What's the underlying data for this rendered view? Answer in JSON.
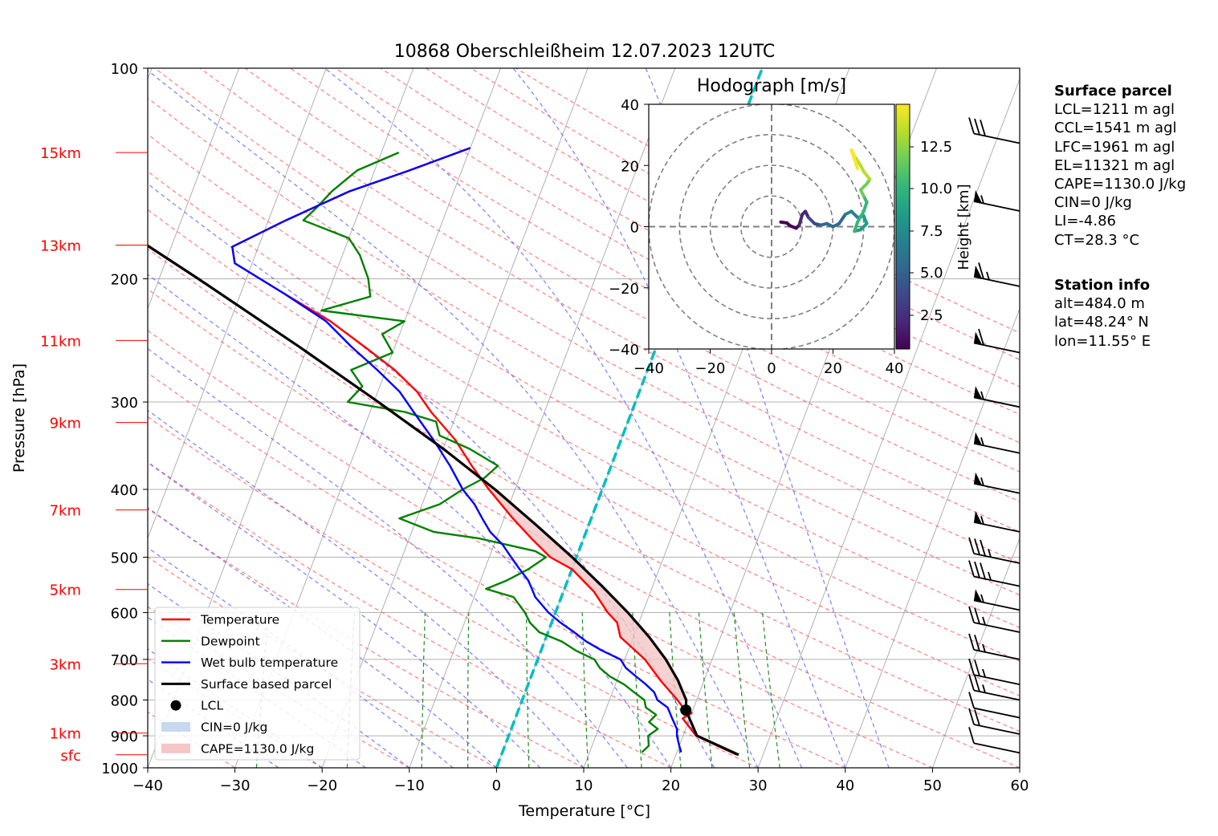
{
  "title": "10868 Oberschleißheim 12.07.2023 12UTC",
  "chart_data": {
    "type": "line",
    "subtype": "skew-t log-p sounding",
    "title": "10868 Oberschleißheim 12.07.2023 12UTC",
    "xlabel": "Temperature [°C]",
    "ylabel": "Pressure [hPa]",
    "xlim": [
      -40,
      60
    ],
    "ylim": [
      1000,
      100
    ],
    "y_scale": "log",
    "x_ticks": [
      "−40",
      "−30",
      "−20",
      "−10",
      "0",
      "10",
      "20",
      "30",
      "40",
      "50",
      "60"
    ],
    "y_ticks": [
      "100",
      "200",
      "300",
      "400",
      "500",
      "600",
      "700",
      "800",
      "900",
      "1000"
    ],
    "height_labels": [
      {
        "label": "sfc",
        "p": 958
      },
      {
        "label": "1km",
        "p": 892
      },
      {
        "label": "3km",
        "p": 710
      },
      {
        "label": "5km",
        "p": 556
      },
      {
        "label": "7km",
        "p": 428
      },
      {
        "label": "9km",
        "p": 321
      },
      {
        "label": "11km",
        "p": 245
      },
      {
        "label": "13km",
        "p": 179
      },
      {
        "label": "15km",
        "p": 132
      }
    ],
    "height_label_color": "#ff0000",
    "grid": true,
    "legend_position": "lower-left",
    "legend": [
      "Temperature",
      "Dewpoint",
      "Wet bulb temperature",
      "Surface based parcel",
      "LCL",
      "CIN=0 J/kg",
      "CAPE=1130.0 J/kg"
    ],
    "series": [
      {
        "name": "Temperature",
        "color": "#ff0000",
        "points": [
          [
            958,
            27.0
          ],
          [
            900,
            21.5
          ],
          [
            850,
            19.2
          ],
          [
            835,
            20.0
          ],
          [
            825,
            19.0
          ],
          [
            800,
            17.8
          ],
          [
            750,
            15.0
          ],
          [
            700,
            12.3
          ],
          [
            650,
            8.5
          ],
          [
            620,
            7.5
          ],
          [
            600,
            6.0
          ],
          [
            560,
            3.5
          ],
          [
            520,
            0.0
          ],
          [
            500,
            -3.0
          ],
          [
            470,
            -6.0
          ],
          [
            440,
            -9.0
          ],
          [
            400,
            -13.0
          ],
          [
            370,
            -16.0
          ],
          [
            340,
            -19.0
          ],
          [
            310,
            -23.0
          ],
          [
            290,
            -25.5
          ],
          [
            270,
            -29.0
          ],
          [
            250,
            -33.5
          ],
          [
            230,
            -38.5
          ],
          [
            210,
            -45.0
          ],
          [
            190,
            -52.0
          ],
          [
            180,
            -53.0
          ],
          [
            165,
            -48.0
          ],
          [
            150,
            -42.0
          ],
          [
            140,
            -36.0
          ],
          [
            130,
            -30.0
          ]
        ]
      },
      {
        "name": "Dewpoint",
        "color": "#008000",
        "points": [
          [
            950,
            16.0
          ],
          [
            930,
            16.5
          ],
          [
            900,
            16.0
          ],
          [
            880,
            16.8
          ],
          [
            860,
            15.5
          ],
          [
            840,
            16.0
          ],
          [
            820,
            14.5
          ],
          [
            800,
            14.0
          ],
          [
            780,
            12.5
          ],
          [
            760,
            11.0
          ],
          [
            740,
            9.0
          ],
          [
            720,
            7.5
          ],
          [
            700,
            6.5
          ],
          [
            680,
            4.0
          ],
          [
            660,
            2.0
          ],
          [
            640,
            -1.0
          ],
          [
            620,
            -2.5
          ],
          [
            600,
            -3.5
          ],
          [
            570,
            -5.5
          ],
          [
            555,
            -9.0
          ],
          [
            540,
            -7.0
          ],
          [
            520,
            -5.0
          ],
          [
            500,
            -3.5
          ],
          [
            490,
            -5.0
          ],
          [
            470,
            -12.0
          ],
          [
            460,
            -17.5
          ],
          [
            440,
            -22.0
          ],
          [
            420,
            -18.0
          ],
          [
            400,
            -16.0
          ],
          [
            385,
            -14.0
          ],
          [
            370,
            -13.0
          ],
          [
            350,
            -17.0
          ],
          [
            335,
            -21.0
          ],
          [
            320,
            -22.0
          ],
          [
            310,
            -26.0
          ],
          [
            300,
            -33.0
          ],
          [
            285,
            -32.0
          ],
          [
            270,
            -34.0
          ],
          [
            255,
            -30.0
          ],
          [
            240,
            -32.0
          ],
          [
            230,
            -30.0
          ],
          [
            222,
            -40.0
          ],
          [
            212,
            -35.0
          ],
          [
            200,
            -36.0
          ],
          [
            185,
            -38.0
          ],
          [
            175,
            -40.0
          ],
          [
            165,
            -46.0
          ],
          [
            158,
            -45.0
          ],
          [
            150,
            -44.0
          ],
          [
            140,
            -42.0
          ],
          [
            132,
            -38.0
          ]
        ]
      },
      {
        "name": "Wet bulb temperature",
        "color": "#0000ff",
        "points": [
          [
            950,
            20.5
          ],
          [
            930,
            20.0
          ],
          [
            900,
            19.3
          ],
          [
            880,
            19.0
          ],
          [
            850,
            18.0
          ],
          [
            820,
            17.0
          ],
          [
            800,
            15.5
          ],
          [
            780,
            14.8
          ],
          [
            760,
            13.5
          ],
          [
            740,
            12.0
          ],
          [
            720,
            10.5
          ],
          [
            700,
            9.5
          ],
          [
            680,
            7.0
          ],
          [
            660,
            4.8
          ],
          [
            640,
            3.0
          ],
          [
            620,
            1.0
          ],
          [
            600,
            -0.8
          ],
          [
            570,
            -3.0
          ],
          [
            540,
            -4.5
          ],
          [
            520,
            -6.0
          ],
          [
            500,
            -7.5
          ],
          [
            480,
            -9.0
          ],
          [
            460,
            -11.0
          ],
          [
            440,
            -12.5
          ],
          [
            420,
            -14.0
          ],
          [
            400,
            -16.0
          ],
          [
            370,
            -18.5
          ],
          [
            340,
            -21.5
          ],
          [
            310,
            -25.0
          ],
          [
            290,
            -27.5
          ],
          [
            270,
            -31.0
          ],
          [
            250,
            -35.0
          ],
          [
            230,
            -39.0
          ],
          [
            210,
            -45.0
          ],
          [
            190,
            -52.0
          ],
          [
            180,
            -53.0
          ],
          [
            165,
            -48.0
          ],
          [
            150,
            -42.0
          ],
          [
            140,
            -36.0
          ],
          [
            130,
            -30.0
          ]
        ]
      },
      {
        "name": "Surface based parcel",
        "color": "#000000",
        "points": [
          [
            958,
            27.2
          ],
          [
            900,
            21.6
          ],
          [
            827,
            19.2
          ],
          [
            800,
            18.8
          ],
          [
            750,
            17.0
          ],
          [
            700,
            14.7
          ],
          [
            650,
            11.8
          ],
          [
            600,
            8.3
          ],
          [
            550,
            4.2
          ],
          [
            500,
            -0.5
          ],
          [
            450,
            -6.0
          ],
          [
            400,
            -12.3
          ],
          [
            350,
            -20.0
          ],
          [
            300,
            -29.5
          ],
          [
            250,
            -41.0
          ],
          [
            200,
            -55.5
          ],
          [
            180,
            -62.5
          ],
          [
            160,
            -70.5
          ],
          [
            145,
            -77.0
          ],
          [
            132,
            -83.0
          ]
        ]
      }
    ],
    "lcl": {
      "p": 827,
      "t": 19.2
    },
    "annotations": [
      "CIN=0 J/kg",
      "CAPE=1130.0 J/kg"
    ],
    "wind_barbs": [
      {
        "p": 952,
        "speed_kt": 10,
        "dir": 260
      },
      {
        "p": 895,
        "speed_kt": 20,
        "dir": 255
      },
      {
        "p": 848,
        "speed_kt": 10,
        "dir": 250
      },
      {
        "p": 800,
        "speed_kt": 25,
        "dir": 255
      },
      {
        "p": 760,
        "speed_kt": 25,
        "dir": 260
      },
      {
        "p": 700,
        "speed_kt": 25,
        "dir": 265
      },
      {
        "p": 640,
        "speed_kt": 25,
        "dir": 270
      },
      {
        "p": 595,
        "speed_kt": 55,
        "dir": 265
      },
      {
        "p": 550,
        "speed_kt": 35,
        "dir": 265
      },
      {
        "p": 510,
        "speed_kt": 35,
        "dir": 265
      },
      {
        "p": 460,
        "speed_kt": 55,
        "dir": 265
      },
      {
        "p": 405,
        "speed_kt": 55,
        "dir": 260
      },
      {
        "p": 355,
        "speed_kt": 55,
        "dir": 260
      },
      {
        "p": 305,
        "speed_kt": 55,
        "dir": 255
      },
      {
        "p": 255,
        "speed_kt": 60,
        "dir": 250
      },
      {
        "p": 205,
        "speed_kt": 65,
        "dir": 245
      },
      {
        "p": 160,
        "speed_kt": 55,
        "dir": 255
      },
      {
        "p": 128,
        "speed_kt": 30,
        "dir": 265
      }
    ],
    "hodograph": {
      "title": "Hodograph [m/s]",
      "xlim": [
        -40,
        40
      ],
      "ylim": [
        -40,
        40
      ],
      "x_ticks": [
        "−40",
        "−20",
        "0",
        "20",
        "40"
      ],
      "y_ticks": [
        "40",
        "20",
        "0",
        "−20",
        "−40"
      ],
      "rings": [
        10,
        20,
        30,
        40
      ],
      "colorbar_label": "Height [km]",
      "colorbar_ticks": [
        "2.5",
        "5.0",
        "7.5",
        "10.0",
        "12.5"
      ],
      "colormap": "viridis",
      "points": [
        [
          3,
          1.5
        ],
        [
          5,
          1.2
        ],
        [
          6,
          0.3
        ],
        [
          8,
          -0.5
        ],
        [
          9,
          0.5
        ],
        [
          10,
          4.0
        ],
        [
          11,
          5.0
        ],
        [
          12,
          3.0
        ],
        [
          13,
          2.0
        ],
        [
          14,
          1.0
        ],
        [
          16,
          0.5
        ],
        [
          18,
          1.0
        ],
        [
          20,
          0.0
        ],
        [
          22,
          1.0
        ],
        [
          24,
          4.0
        ],
        [
          26,
          5.0
        ],
        [
          28,
          3.0
        ],
        [
          30,
          3.5
        ],
        [
          31,
          1.0
        ],
        [
          29,
          -1.0
        ],
        [
          27,
          -1.5
        ],
        [
          28,
          1.5
        ],
        [
          30,
          5.0
        ],
        [
          31,
          8.0
        ],
        [
          30,
          10.0
        ],
        [
          29,
          12.0
        ],
        [
          31,
          14.0
        ],
        [
          32,
          15.5
        ],
        [
          30,
          18.0
        ],
        [
          29,
          20.0
        ],
        [
          27,
          23.0
        ],
        [
          26,
          25.0
        ],
        [
          27,
          22.0
        ],
        [
          28,
          19.0
        ]
      ]
    }
  },
  "surface_parcel": {
    "heading": "Surface parcel",
    "lines": [
      "LCL=1211 m agl",
      "CCL=1541 m agl",
      "LFC=1961 m agl",
      "EL=11321 m agl",
      "CAPE=1130.0 J/kg",
      "CIN=0 J/kg",
      "LI=-4.86",
      "CT=28.3 °C"
    ]
  },
  "station_info": {
    "heading": "Station info",
    "lines": [
      "alt=484.0 m",
      "lat=48.24° N",
      "lon=11.55° E"
    ]
  },
  "colors": {
    "temperature": "#ff0000",
    "dewpoint": "#008000",
    "wetbulb": "#0000ff",
    "parcel": "#000000",
    "cape_fill": "#f4c6c6",
    "cin_fill": "#c6d9ee",
    "isotherm_zero": "#00bfbf",
    "dry_adiabat": "#ff6666",
    "moist_adiabat": "#6666ff",
    "mixing_ratio": "#228b22"
  }
}
